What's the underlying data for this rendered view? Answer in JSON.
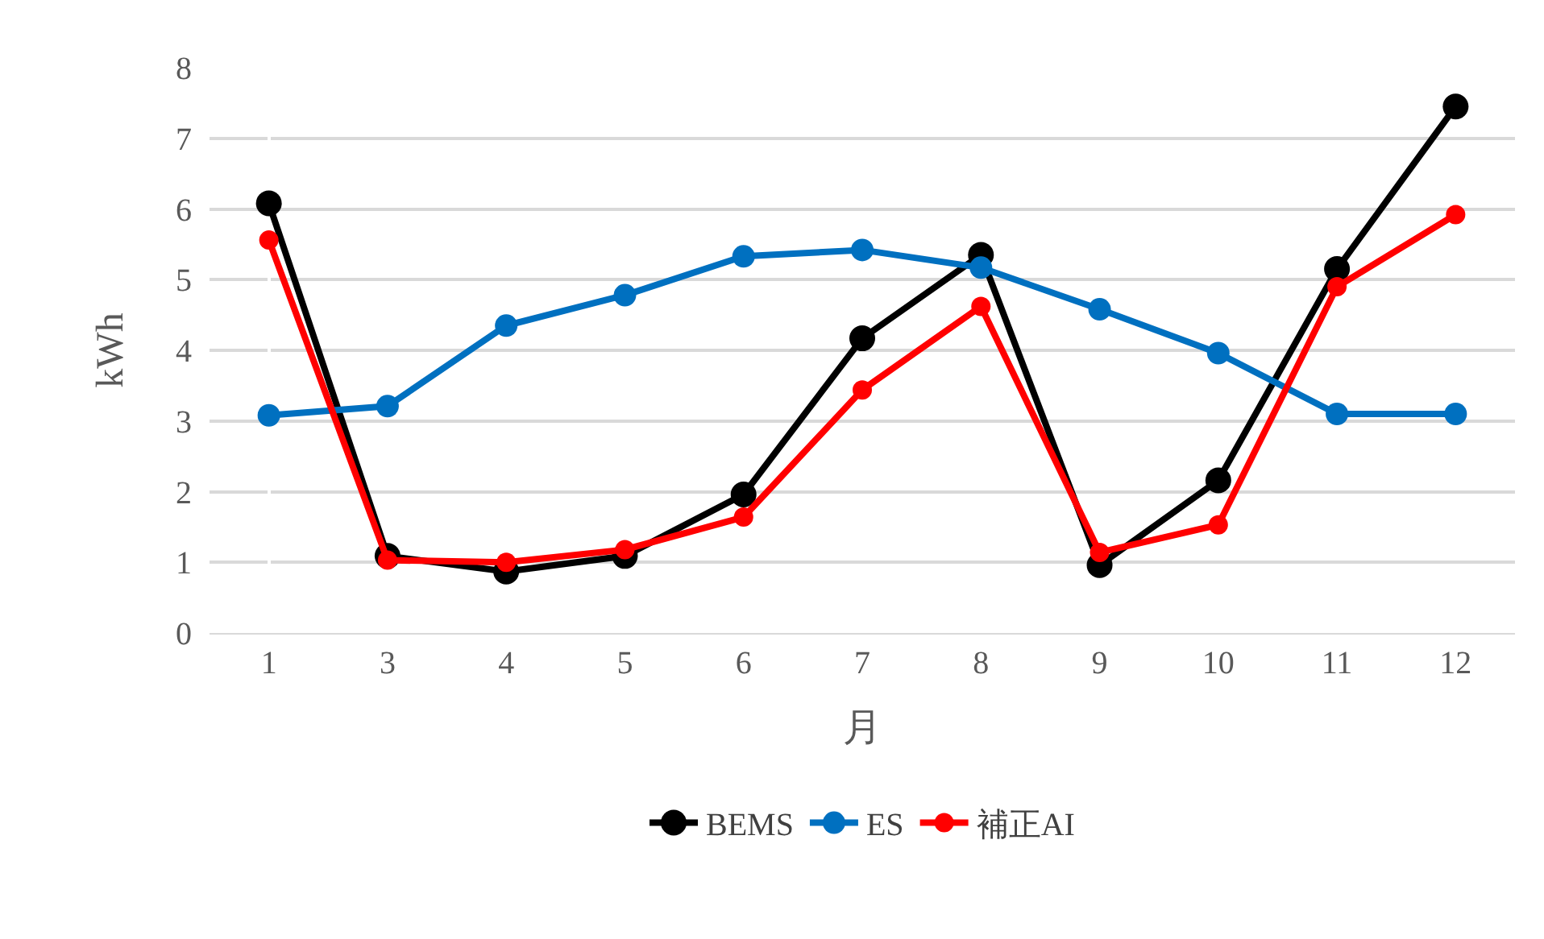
{
  "chart_data": {
    "type": "line",
    "xlabel": "月",
    "ylabel": "kWh",
    "categories": [
      "1",
      "3",
      "4",
      "5",
      "6",
      "7",
      "8",
      "9",
      "10",
      "11",
      "12"
    ],
    "series": [
      {
        "name": "BEMS",
        "color": "#000000",
        "values": [
          6.08,
          1.09,
          0.87,
          1.09,
          1.96,
          4.17,
          5.35,
          0.96,
          2.16,
          5.15,
          7.45
        ]
      },
      {
        "name": "ES",
        "color": "#0070c0",
        "values": [
          3.08,
          3.21,
          4.35,
          4.78,
          5.33,
          5.42,
          5.17,
          4.58,
          3.96,
          3.1,
          3.1
        ]
      },
      {
        "name": "補正AI",
        "color": "#ff0000",
        "values": [
          5.56,
          1.03,
          1.0,
          1.18,
          1.64,
          3.44,
          4.62,
          1.14,
          1.53,
          4.9,
          5.92
        ]
      }
    ],
    "ylim": [
      0,
      8
    ],
    "yticks": [
      0,
      1,
      2,
      3,
      4,
      5,
      6,
      7,
      8
    ],
    "grid": "y",
    "legend": "bottom",
    "marker": "circle",
    "line_style": "solid"
  }
}
